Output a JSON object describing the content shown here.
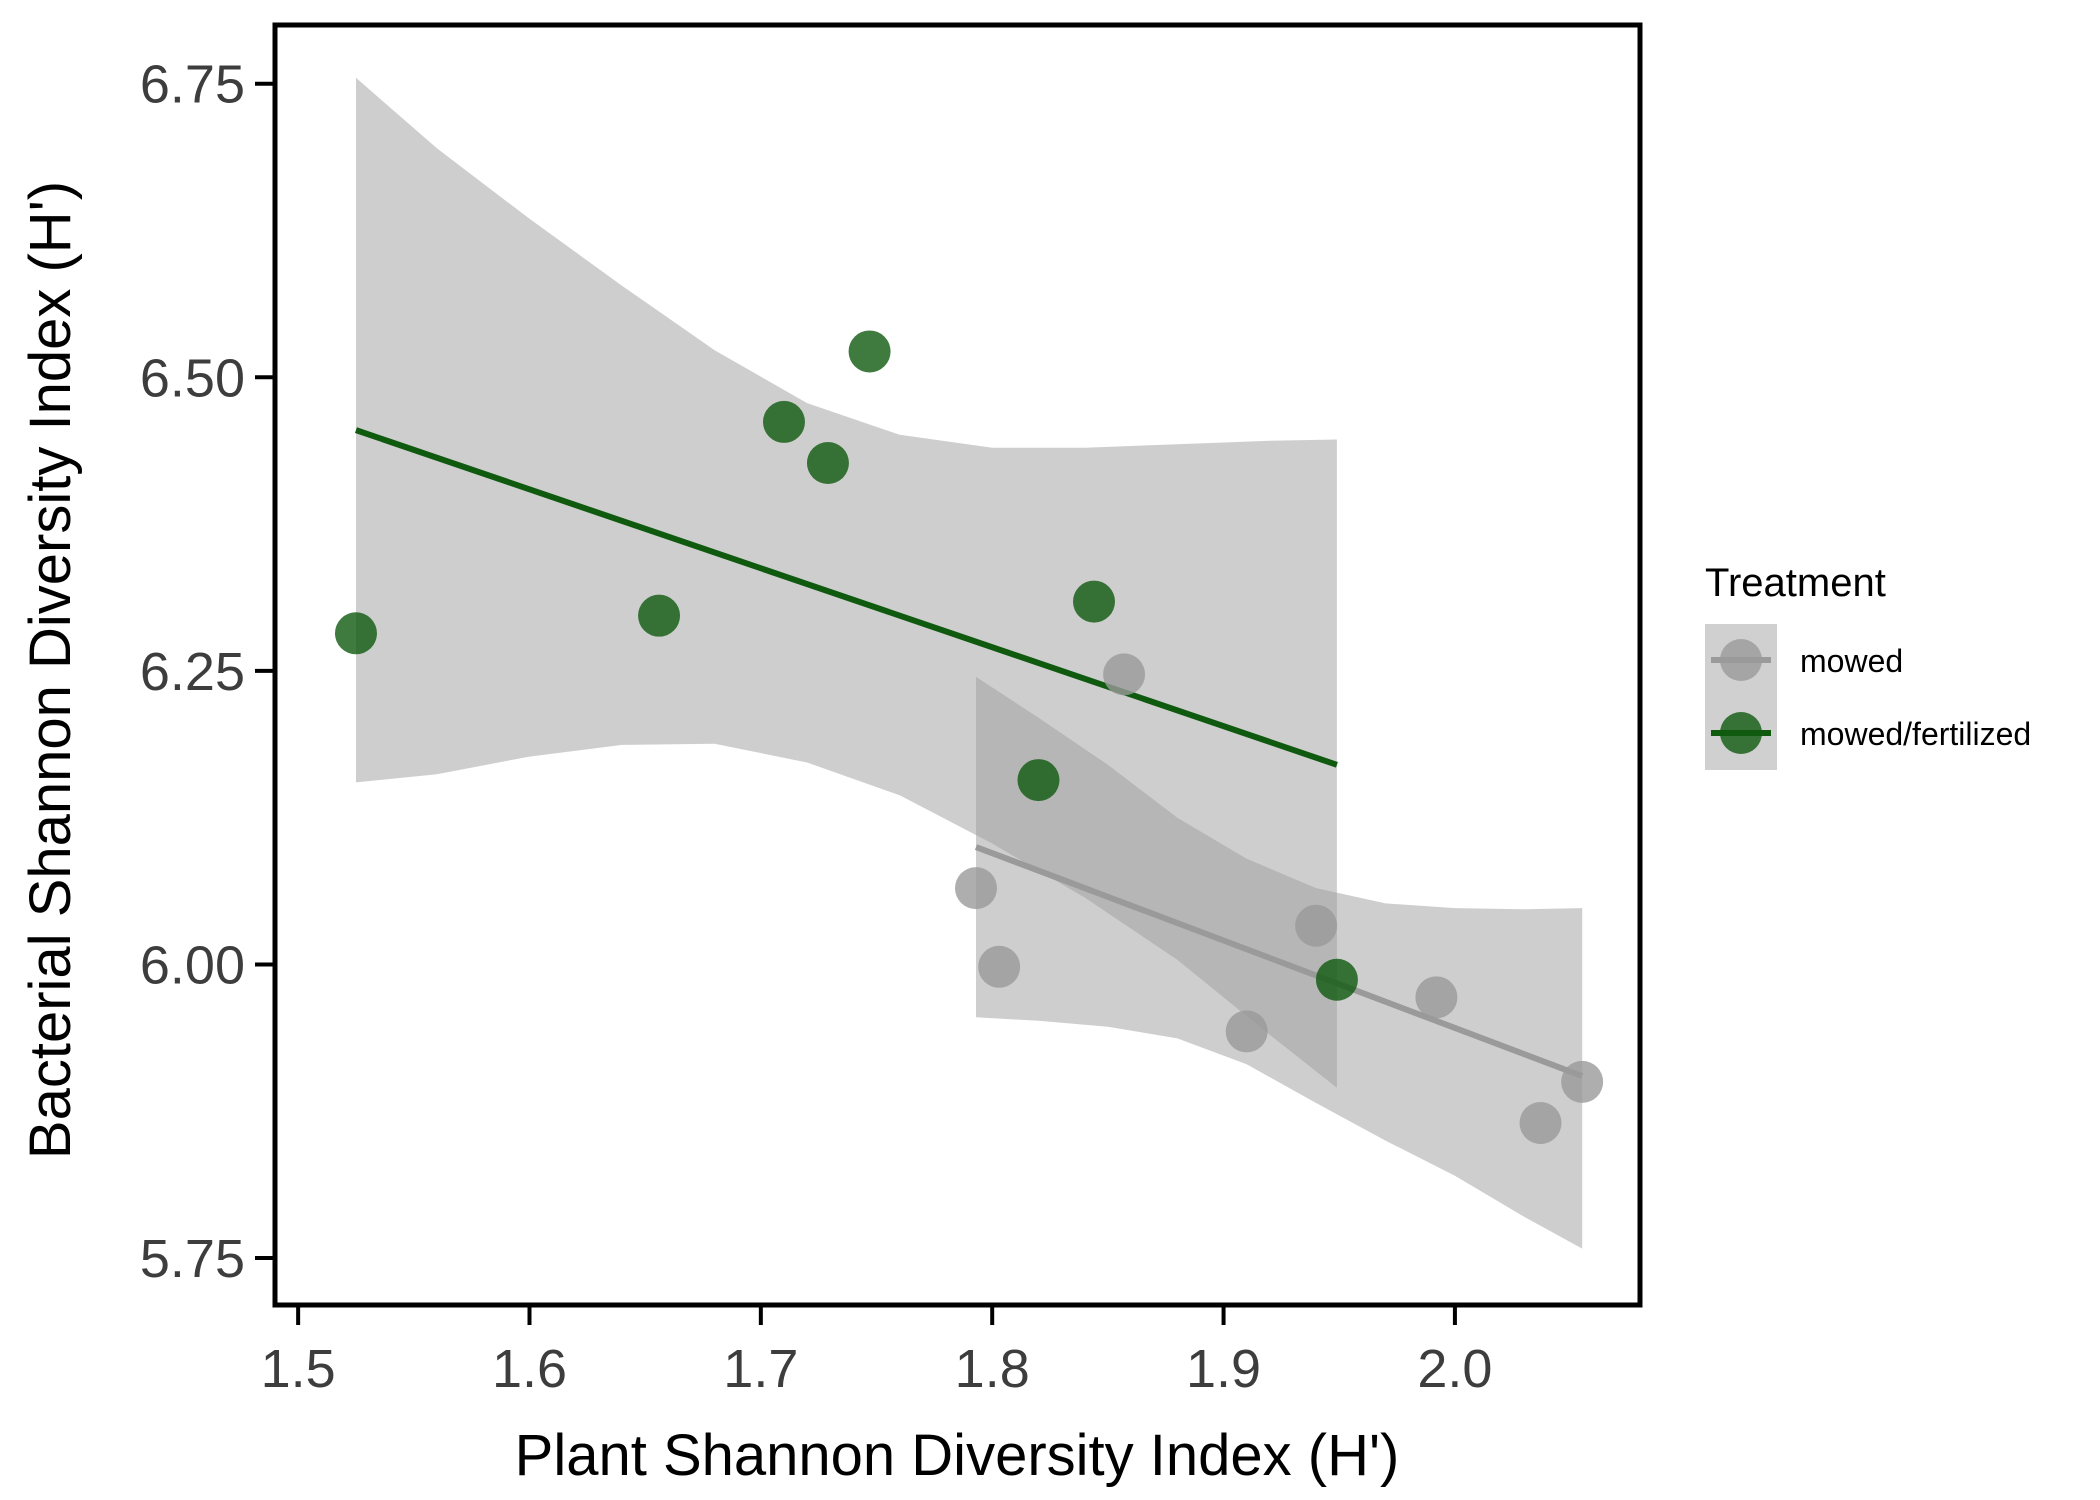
{
  "chart_data": {
    "type": "scatter",
    "title": "",
    "xlabel": "Plant Shannon Diversity Index (H')",
    "ylabel": "Bacterial Shannon Diversity Index (H')",
    "xlim": [
      1.49,
      2.08
    ],
    "ylim": [
      5.71,
      6.8
    ],
    "x_ticks": [
      1.5,
      1.6,
      1.7,
      1.8,
      1.9,
      2.0
    ],
    "x_tick_labels": [
      "1.5",
      "1.6",
      "1.7",
      "1.8",
      "1.9",
      "2.0"
    ],
    "y_ticks": [
      5.75,
      6.0,
      6.25,
      6.5,
      6.75
    ],
    "y_tick_labels": [
      "5.75",
      "6.00",
      "6.25",
      "6.50",
      "6.75"
    ],
    "grid": false,
    "legend_position": "right",
    "legend_title": "Treatment",
    "series": [
      {
        "name": "mowed",
        "color": "#9a9a9a",
        "points": [
          {
            "x": 1.793,
            "y": 6.065
          },
          {
            "x": 1.803,
            "y": 5.998
          },
          {
            "x": 1.857,
            "y": 6.247
          },
          {
            "x": 1.91,
            "y": 5.943
          },
          {
            "x": 1.94,
            "y": 6.033
          },
          {
            "x": 1.992,
            "y": 5.972
          },
          {
            "x": 2.037,
            "y": 5.865
          },
          {
            "x": 2.055,
            "y": 5.9
          }
        ],
        "fit_line": [
          {
            "x": 1.793,
            "y": 6.1
          },
          {
            "x": 2.055,
            "y": 5.905
          }
        ],
        "confidence_band": {
          "x": [
            1.793,
            1.82,
            1.85,
            1.88,
            1.91,
            1.94,
            1.97,
            2.0,
            2.03,
            2.055
          ],
          "upper": [
            6.245,
            6.21,
            6.17,
            6.125,
            6.09,
            6.065,
            6.052,
            6.048,
            6.047,
            6.048
          ],
          "lower": [
            5.955,
            5.952,
            5.947,
            5.937,
            5.915,
            5.882,
            5.85,
            5.82,
            5.785,
            5.758
          ]
        }
      },
      {
        "name": "mowed/fertilized",
        "color": "#0f5a0f",
        "points": [
          {
            "x": 1.525,
            "y": 6.282
          },
          {
            "x": 1.656,
            "y": 6.297
          },
          {
            "x": 1.71,
            "y": 6.462
          },
          {
            "x": 1.729,
            "y": 6.427
          },
          {
            "x": 1.747,
            "y": 6.522
          },
          {
            "x": 1.82,
            "y": 6.157
          },
          {
            "x": 1.844,
            "y": 6.309
          },
          {
            "x": 1.949,
            "y": 5.987
          }
        ],
        "fit_line": [
          {
            "x": 1.525,
            "y": 6.455
          },
          {
            "x": 1.949,
            "y": 6.17
          }
        ],
        "confidence_band": {
          "x": [
            1.525,
            1.56,
            1.6,
            1.64,
            1.68,
            1.72,
            1.76,
            1.8,
            1.84,
            1.88,
            1.92,
            1.949
          ],
          "upper": [
            6.755,
            6.695,
            6.635,
            6.578,
            6.523,
            6.478,
            6.451,
            6.44,
            6.44,
            6.443,
            6.446,
            6.447
          ],
          "lower": [
            6.155,
            6.162,
            6.177,
            6.187,
            6.188,
            6.172,
            6.144,
            6.103,
            6.057,
            6.004,
            5.94,
            5.895
          ]
        }
      }
    ]
  }
}
